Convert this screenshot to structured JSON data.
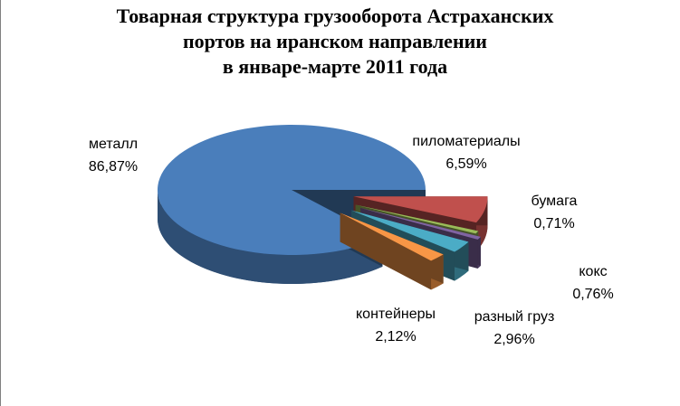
{
  "chart_data": {
    "type": "pie",
    "title": [
      "Товарная структура грузооборота Астраханских",
      "портов на иранском направлении",
      "в январе-марте 2011 года"
    ],
    "categories": [
      "пиломатериалы",
      "бумага",
      "кокс",
      "разный груз",
      "контейнеры",
      "металл"
    ],
    "values": [
      6.59,
      0.71,
      0.76,
      2.96,
      2.12,
      86.87
    ],
    "value_labels": [
      "6,59%",
      "0,71%",
      "0,76%",
      "2,96%",
      "2,12%",
      "86,87%"
    ],
    "colors": [
      "#c0504d",
      "#9bbb59",
      "#8064a2",
      "#4bacc6",
      "#f79646",
      "#4a7ebb"
    ]
  }
}
